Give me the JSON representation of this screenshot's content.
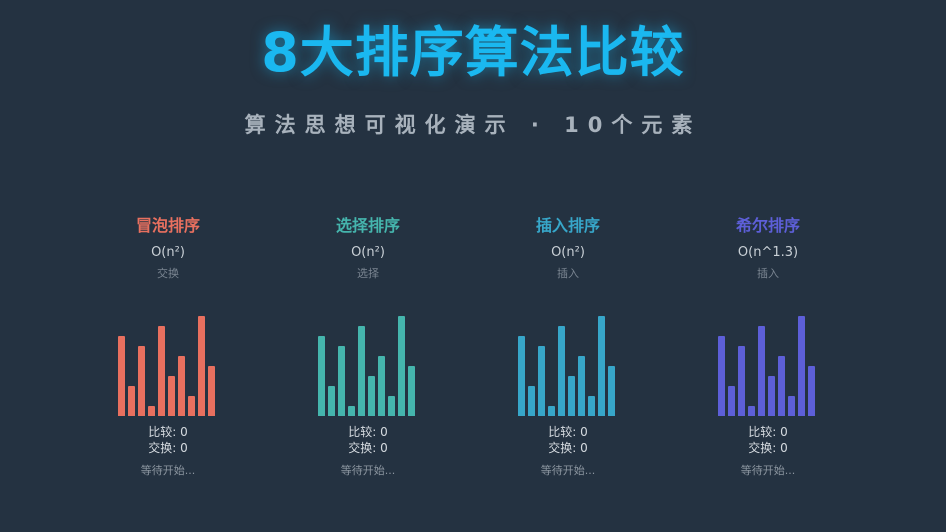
{
  "header": {
    "title": "8大排序算法比较",
    "subtitle": "算法思想可视化演示 · 10个元素"
  },
  "array_values": [
    8,
    3,
    7,
    1,
    9,
    4,
    6,
    2,
    10,
    5
  ],
  "algorithms": [
    {
      "name": "冒泡排序",
      "complexity": "O(n²)",
      "kind": "交换",
      "compare": "比较: 0",
      "swap": "交换: 0",
      "status": "等待开始...",
      "color": "#e8705f"
    },
    {
      "name": "选择排序",
      "complexity": "O(n²)",
      "kind": "选择",
      "compare": "比较: 0",
      "swap": "交换: 0",
      "status": "等待开始...",
      "color": "#45b5ad"
    },
    {
      "name": "插入排序",
      "complexity": "O(n²)",
      "kind": "插入",
      "compare": "比较: 0",
      "swap": "交换: 0",
      "status": "等待开始...",
      "color": "#37a6c9"
    },
    {
      "name": "希尔排序",
      "complexity": "O(n^1.3)",
      "kind": "插入",
      "compare": "比较: 0",
      "swap": "交换: 0",
      "status": "等待开始...",
      "color": "#5d5fd8"
    }
  ]
}
